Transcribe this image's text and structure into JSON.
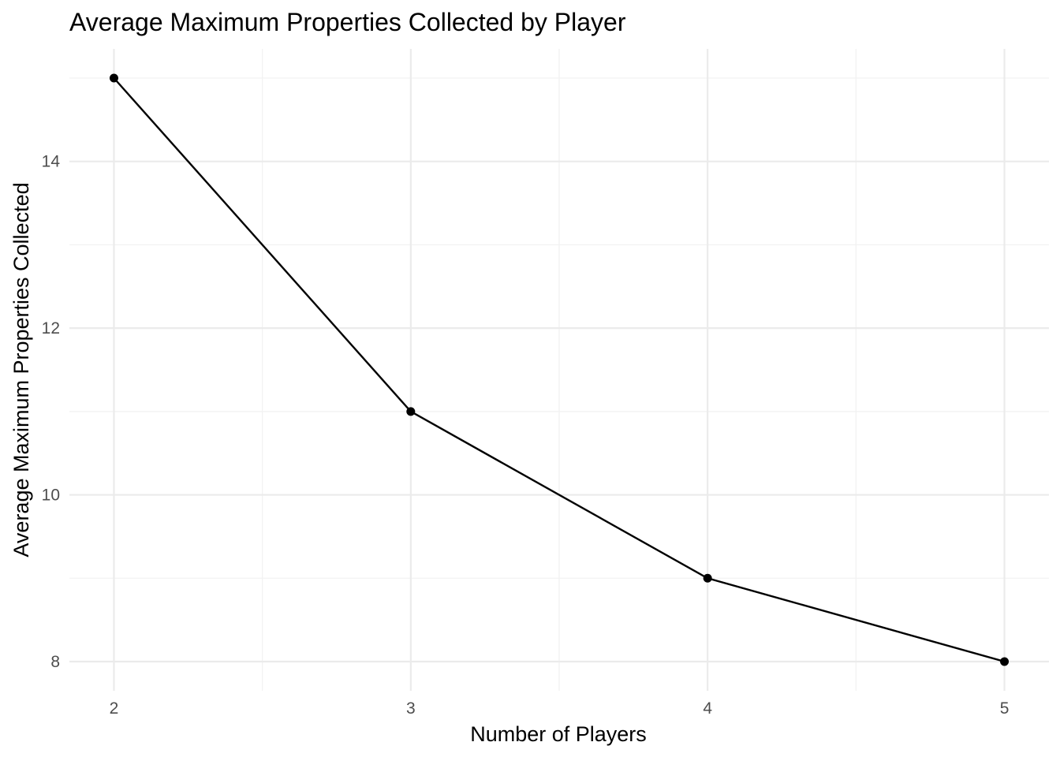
{
  "chart_data": {
    "type": "line",
    "title": "Average Maximum Properties Collected by Player",
    "xlabel": "Number of Players",
    "ylabel": "Average Maximum Properties Collected",
    "x": [
      2,
      3,
      4,
      5
    ],
    "series": [
      {
        "values": [
          15,
          11,
          9,
          8
        ]
      }
    ],
    "x_ticks": [
      "2",
      "3",
      "4",
      "5"
    ],
    "y_ticks": [
      "8",
      "10",
      "12",
      "14"
    ],
    "xlim": [
      1.85,
      5.15
    ],
    "ylim": [
      7.65,
      15.35
    ],
    "grid": true,
    "legend": "none",
    "colors": {
      "line": "#000000",
      "grid": "#ebebeb",
      "background": "#ffffff"
    }
  }
}
